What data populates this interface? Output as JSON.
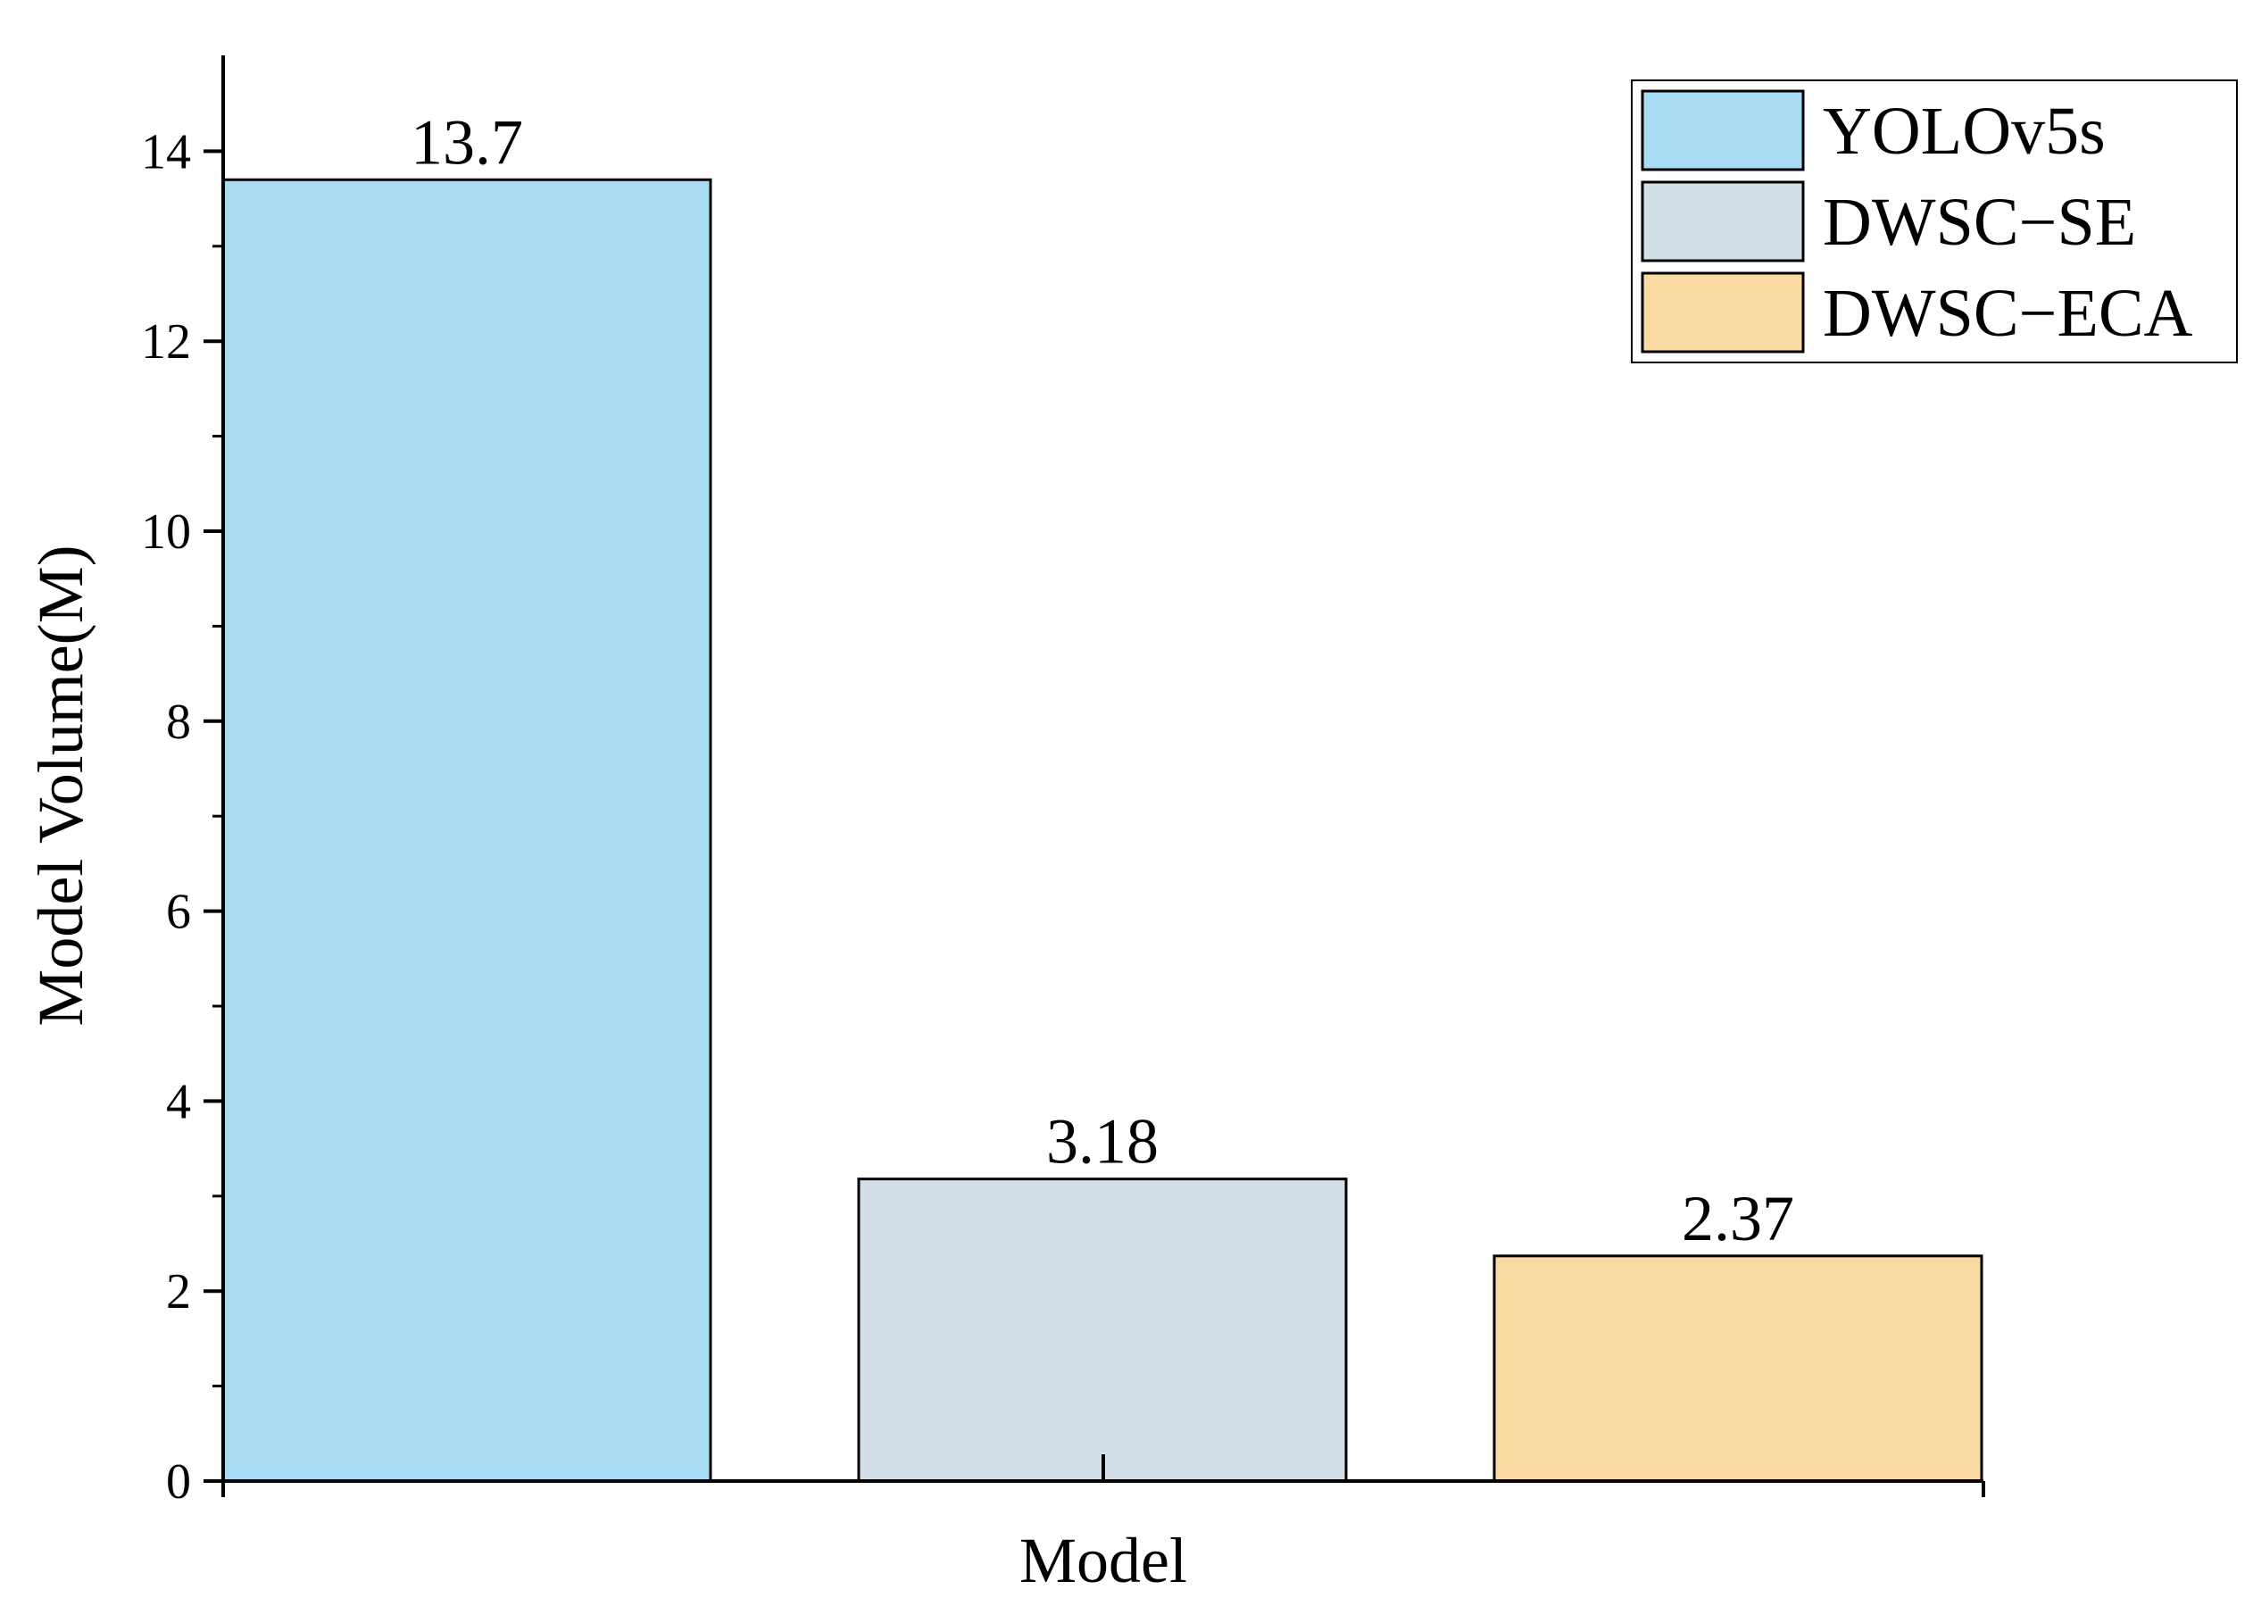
{
  "chart_data": {
    "type": "bar",
    "title": "",
    "xlabel": "Model",
    "ylabel": "Model Volume(M)",
    "ylim": [
      0,
      15
    ],
    "yticks": [
      0,
      2,
      4,
      6,
      8,
      10,
      12,
      14
    ],
    "grid": false,
    "legend_position": "top-right",
    "categories": [
      "YOLOv5s",
      "DWSC−SE",
      "DWSC−ECA"
    ],
    "values": [
      13.7,
      3.18,
      2.37
    ],
    "value_labels": [
      "13.7",
      "3.18",
      "2.37"
    ],
    "colors": [
      "#a8dcf4",
      "#d2dfe7",
      "#fbd9a3"
    ]
  }
}
